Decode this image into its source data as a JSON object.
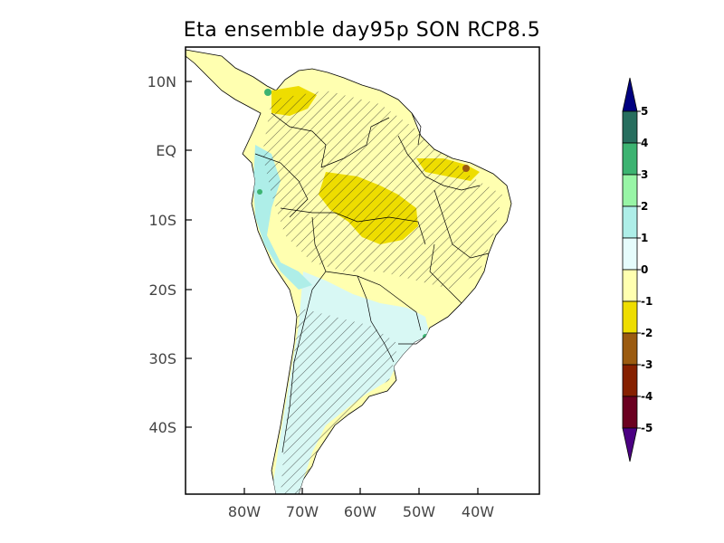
{
  "title": "Eta ensemble day95p SON RCP8.5",
  "lat_labels": [
    "10N",
    "EQ",
    "10S",
    "20S",
    "30S",
    "40S"
  ],
  "lon_labels": [
    "80W",
    "70W",
    "60W",
    "50W",
    "40W"
  ],
  "colorbar": {
    "labels": [
      "5",
      "4",
      "3",
      "2",
      "1",
      "0",
      "-1",
      "-2",
      "-3",
      "-4",
      "-5"
    ],
    "colors": [
      "#276e5e",
      "#3cb371",
      "#98f5a6",
      "#aeeee8",
      "#e6fcfc",
      "#ffffb0",
      "#eedd00",
      "#9b5b10",
      "#862000",
      "#6b0020"
    ],
    "over_color": "#000080",
    "under_color": "#4b0082"
  },
  "palette": {
    "land_base": "#ffffb0",
    "yellow": "#eedd00",
    "cyan": "#d8f8f4",
    "teal": "#aeeee8",
    "green": "#3cb371",
    "brown": "#9b5b10"
  }
}
